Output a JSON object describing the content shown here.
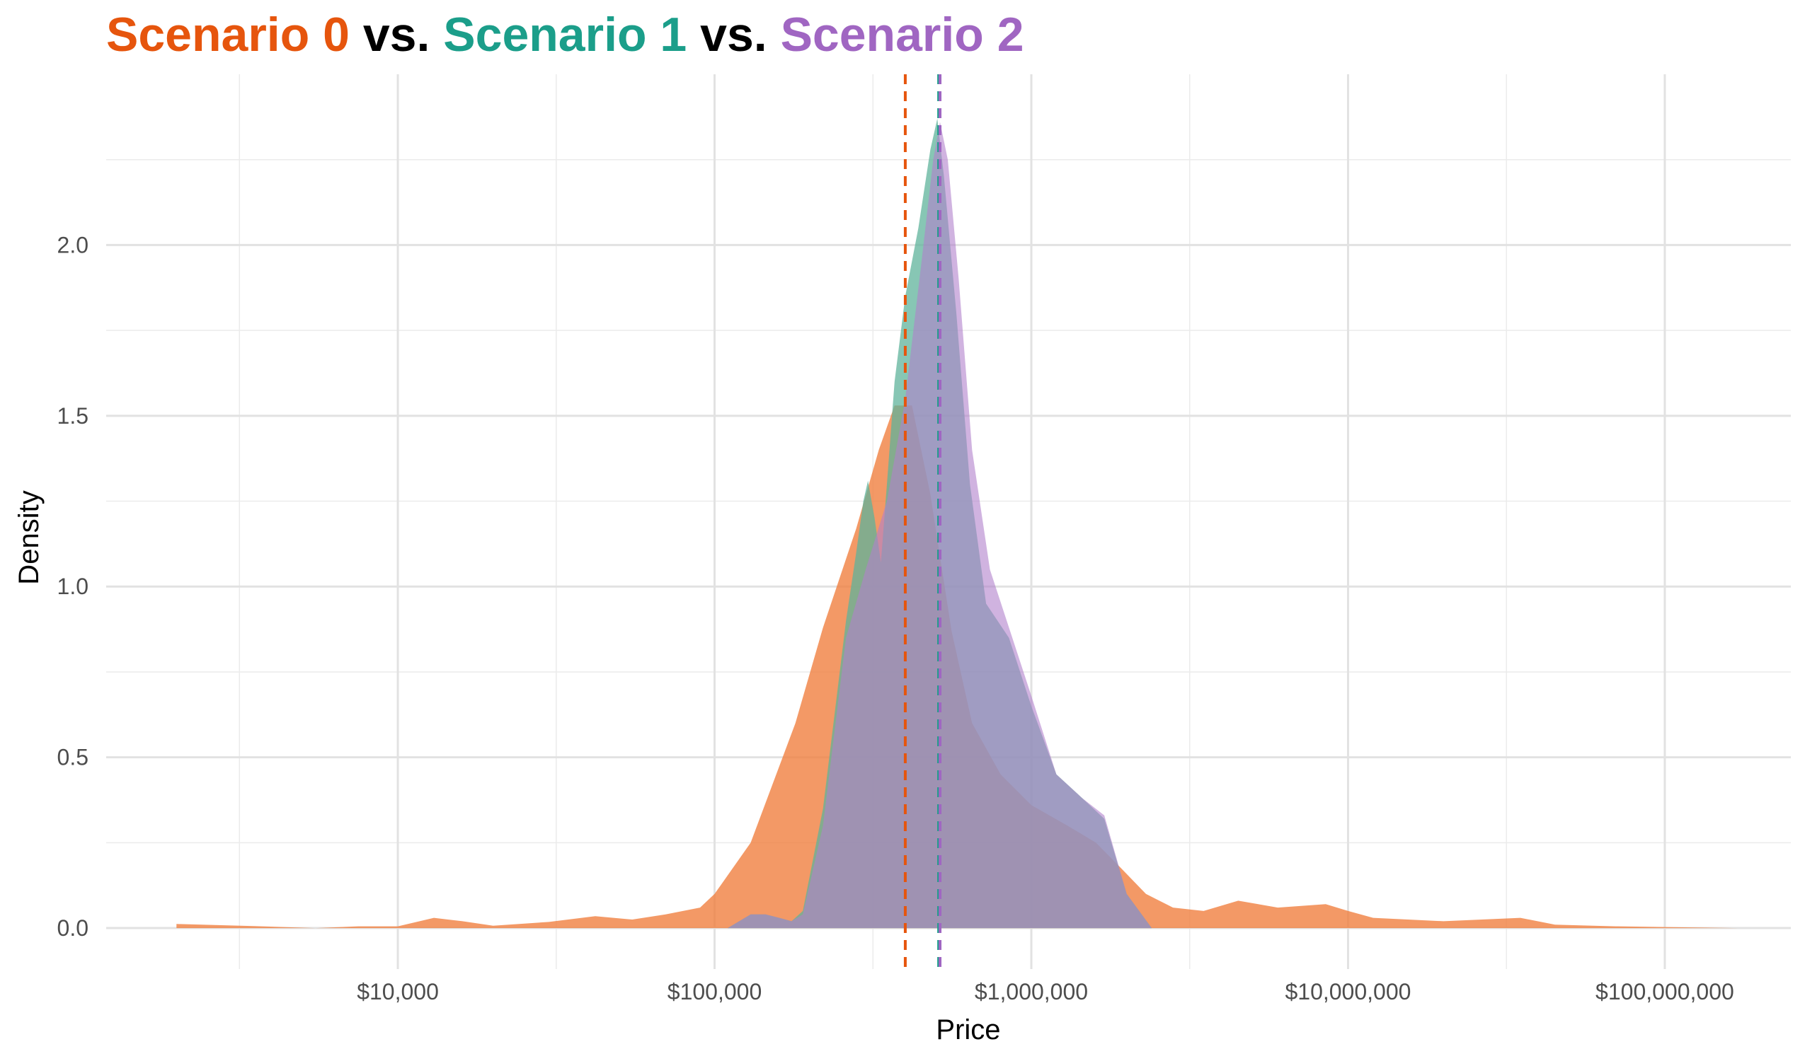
{
  "chart_data": {
    "type": "area",
    "title": {
      "segments": [
        {
          "text": "Scenario 0",
          "color": "#E6550D"
        },
        {
          "text": " vs. ",
          "color": "#000000"
        },
        {
          "text": "Scenario 1",
          "color": "#1B9E8A"
        },
        {
          "text": " vs. ",
          "color": "#000000"
        },
        {
          "text": "Scenario 2",
          "color": "#A066C2"
        }
      ]
    },
    "xlabel": "Price",
    "ylabel": "Density",
    "x_scale": "log10",
    "xlim": [
      1200,
      250000000
    ],
    "ylim": [
      -0.12,
      2.5
    ],
    "x_ticks": [
      {
        "value": 10000,
        "label": "$10,000"
      },
      {
        "value": 100000,
        "label": "$100,000"
      },
      {
        "value": 1000000,
        "label": "$1,000,000"
      },
      {
        "value": 10000000,
        "label": "$10,000,000"
      },
      {
        "value": 100000000,
        "label": "$100,000,000"
      }
    ],
    "x_minor_ticks": [
      3162,
      31623,
      316228,
      3162278,
      31622777
    ],
    "y_ticks": [
      {
        "value": 0.0,
        "label": "0.0"
      },
      {
        "value": 0.5,
        "label": "0.5"
      },
      {
        "value": 1.0,
        "label": "1.0"
      },
      {
        "value": 1.5,
        "label": "1.5"
      },
      {
        "value": 2.0,
        "label": "2.0"
      }
    ],
    "y_minor_ticks": [
      0.25,
      0.75,
      1.25,
      1.75,
      2.25
    ],
    "grid": true,
    "legend": "none",
    "series": [
      {
        "color": "#F08040",
        "opacity": 0.8,
        "median": 400000,
        "median_color": "#E6550D",
        "points": [
          [
            2000,
            0.012
          ],
          [
            3500,
            0.006
          ],
          [
            5500,
            0.0
          ],
          [
            7500,
            0.005
          ],
          [
            10000,
            0.005
          ],
          [
            13000,
            0.03
          ],
          [
            16000,
            0.02
          ],
          [
            20000,
            0.007
          ],
          [
            30000,
            0.018
          ],
          [
            42000,
            0.035
          ],
          [
            55000,
            0.025
          ],
          [
            70000,
            0.04
          ],
          [
            90000,
            0.06
          ],
          [
            100000,
            0.1
          ],
          [
            130000,
            0.25
          ],
          [
            180000,
            0.6
          ],
          [
            220000,
            0.88
          ],
          [
            280000,
            1.17
          ],
          [
            330000,
            1.4
          ],
          [
            370000,
            1.53
          ],
          [
            420000,
            1.53
          ],
          [
            480000,
            1.27
          ],
          [
            560000,
            0.87
          ],
          [
            650000,
            0.6
          ],
          [
            800000,
            0.45
          ],
          [
            1000000,
            0.36
          ],
          [
            1300000,
            0.3
          ],
          [
            1600000,
            0.25
          ],
          [
            1900000,
            0.18
          ],
          [
            2300000,
            0.1
          ],
          [
            2800000,
            0.06
          ],
          [
            3500000,
            0.05
          ],
          [
            4500000,
            0.08
          ],
          [
            6000000,
            0.06
          ],
          [
            8500000,
            0.07
          ],
          [
            10000000,
            0.05
          ],
          [
            12000000,
            0.03
          ],
          [
            20000000,
            0.02
          ],
          [
            35000000,
            0.03
          ],
          [
            45000000,
            0.01
          ],
          [
            70000000,
            0.005
          ],
          [
            100000000,
            0.003
          ],
          [
            170000000,
            0.0
          ]
        ]
      },
      {
        "color": "#5FB39B",
        "opacity": 0.75,
        "median": 510000,
        "median_color": "#1B9E8A",
        "points": [
          [
            110000,
            0.0
          ],
          [
            130000,
            0.04
          ],
          [
            145000,
            0.04
          ],
          [
            160000,
            0.03
          ],
          [
            175000,
            0.02
          ],
          [
            190000,
            0.05
          ],
          [
            220000,
            0.35
          ],
          [
            260000,
            0.9
          ],
          [
            280000,
            1.1
          ],
          [
            295000,
            1.25
          ],
          [
            305000,
            1.31
          ],
          [
            320000,
            1.2
          ],
          [
            335000,
            1.07
          ],
          [
            350000,
            1.3
          ],
          [
            370000,
            1.6
          ],
          [
            400000,
            1.85
          ],
          [
            440000,
            2.05
          ],
          [
            480000,
            2.28
          ],
          [
            505000,
            2.37
          ],
          [
            530000,
            2.2
          ],
          [
            580000,
            1.8
          ],
          [
            640000,
            1.3
          ],
          [
            720000,
            0.95
          ],
          [
            850000,
            0.85
          ],
          [
            1000000,
            0.65
          ],
          [
            1200000,
            0.45
          ],
          [
            1450000,
            0.38
          ],
          [
            1700000,
            0.32
          ],
          [
            2000000,
            0.1
          ],
          [
            2400000,
            0.0
          ]
        ]
      },
      {
        "color": "#B080CC",
        "opacity": 0.6,
        "median": 515000,
        "median_color": "#A066C2",
        "points": [
          [
            110000,
            0.0
          ],
          [
            130000,
            0.04
          ],
          [
            145000,
            0.04
          ],
          [
            160000,
            0.03
          ],
          [
            175000,
            0.02
          ],
          [
            190000,
            0.04
          ],
          [
            220000,
            0.3
          ],
          [
            260000,
            0.85
          ],
          [
            300000,
            1.05
          ],
          [
            350000,
            1.25
          ],
          [
            400000,
            1.55
          ],
          [
            450000,
            1.95
          ],
          [
            490000,
            2.25
          ],
          [
            515000,
            2.36
          ],
          [
            545000,
            2.25
          ],
          [
            590000,
            1.9
          ],
          [
            650000,
            1.4
          ],
          [
            740000,
            1.05
          ],
          [
            850000,
            0.88
          ],
          [
            1000000,
            0.68
          ],
          [
            1200000,
            0.45
          ],
          [
            1450000,
            0.38
          ],
          [
            1700000,
            0.33
          ],
          [
            2000000,
            0.1
          ],
          [
            2400000,
            0.0
          ]
        ]
      }
    ]
  }
}
